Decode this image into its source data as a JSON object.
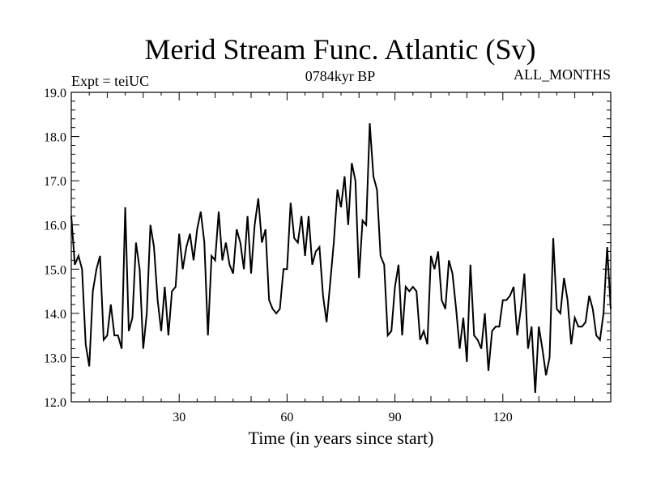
{
  "chart_data": {
    "type": "line",
    "title": "Merid Stream Func. Atlantic (Sv)",
    "subtitle": "0784kyr BP",
    "left_label": "Expt = teiUC",
    "right_label": "ALL_MONTHS",
    "xlabel": "Time (in years since start)",
    "ylabel": "",
    "xlim": [
      0,
      150
    ],
    "ylim": [
      12.0,
      19.0
    ],
    "xticks": [
      30,
      60,
      90,
      120
    ],
    "yticks": [
      12.0,
      13.0,
      14.0,
      15.0,
      16.0,
      17.0,
      18.0,
      19.0
    ],
    "ytick_labels": [
      "12.0",
      "13.0",
      "14.0",
      "15.0",
      "16.0",
      "17.0",
      "18.0",
      "19.0"
    ],
    "series": [
      {
        "name": "Merid Stream Func. Atlantic",
        "x": [
          0,
          1,
          2,
          3,
          4,
          5,
          6,
          7,
          8,
          9,
          10,
          11,
          12,
          13,
          14,
          15,
          16,
          17,
          18,
          19,
          20,
          21,
          22,
          23,
          24,
          25,
          26,
          27,
          28,
          29,
          30,
          31,
          32,
          33,
          34,
          35,
          36,
          37,
          38,
          39,
          40,
          41,
          42,
          43,
          44,
          45,
          46,
          47,
          48,
          49,
          50,
          51,
          52,
          53,
          54,
          55,
          56,
          57,
          58,
          59,
          60,
          61,
          62,
          63,
          64,
          65,
          66,
          67,
          68,
          69,
          70,
          71,
          72,
          73,
          74,
          75,
          76,
          77,
          78,
          79,
          80,
          81,
          82,
          83,
          84,
          85,
          86,
          87,
          88,
          89,
          90,
          91,
          92,
          93,
          94,
          95,
          96,
          97,
          98,
          99,
          100,
          101,
          102,
          103,
          104,
          105,
          106,
          107,
          108,
          109,
          110,
          111,
          112,
          113,
          114,
          115,
          116,
          117,
          118,
          119,
          120,
          121,
          122,
          123,
          124,
          125,
          126,
          127,
          128,
          129,
          130,
          131,
          132,
          133,
          134,
          135,
          136,
          137,
          138,
          139,
          140,
          141,
          142,
          143,
          144,
          145,
          146,
          147,
          148,
          149,
          150
        ],
        "values": [
          16.2,
          15.1,
          15.3,
          15.0,
          13.3,
          12.8,
          14.5,
          15.0,
          15.3,
          13.4,
          13.5,
          14.2,
          13.5,
          13.5,
          13.2,
          16.4,
          13.6,
          13.9,
          15.6,
          15.0,
          13.2,
          14.0,
          16.0,
          15.5,
          14.3,
          13.6,
          14.6,
          13.5,
          14.5,
          14.6,
          15.8,
          15.0,
          15.5,
          15.8,
          15.2,
          15.9,
          16.3,
          15.6,
          13.5,
          15.3,
          15.2,
          16.3,
          15.2,
          15.6,
          15.1,
          14.9,
          15.9,
          15.6,
          15.0,
          16.2,
          14.9,
          16.0,
          16.6,
          15.6,
          15.9,
          14.3,
          14.1,
          14.0,
          14.1,
          15.0,
          15.0,
          16.5,
          15.7,
          15.6,
          16.2,
          15.3,
          16.2,
          15.1,
          15.4,
          15.5,
          14.4,
          13.8,
          14.7,
          15.6,
          16.8,
          16.4,
          17.1,
          16.0,
          17.4,
          17.0,
          14.8,
          16.1,
          16.0,
          18.3,
          17.1,
          16.8,
          15.3,
          15.1,
          13.5,
          13.6,
          14.6,
          15.1,
          13.5,
          14.6,
          14.5,
          14.6,
          14.5,
          13.4,
          13.6,
          13.3,
          15.3,
          15.0,
          15.4,
          14.3,
          14.1,
          15.2,
          14.9,
          14.1,
          13.2,
          13.9,
          12.9,
          15.1,
          13.5,
          13.4,
          13.2,
          14.0,
          12.7,
          13.6,
          13.7,
          13.7,
          14.3,
          14.3,
          14.4,
          14.6,
          13.5,
          14.1,
          14.9,
          13.2,
          13.7,
          12.2,
          13.7,
          13.2,
          12.6,
          13.0,
          15.7,
          14.1,
          14.0,
          14.8,
          14.3,
          13.3,
          13.9,
          13.7,
          13.7,
          13.8,
          14.4,
          14.1,
          13.5,
          13.4,
          14.0,
          15.5,
          14.1
        ]
      }
    ]
  }
}
